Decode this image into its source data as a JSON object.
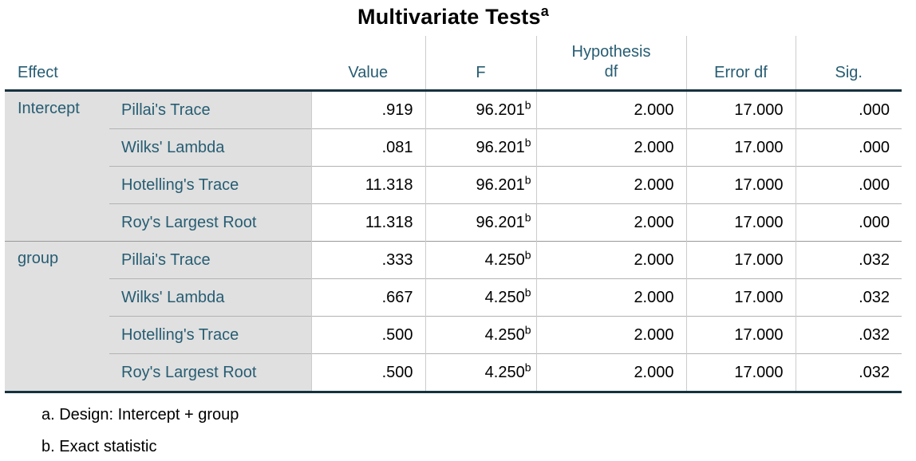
{
  "title": {
    "text": "Multivariate Tests",
    "superscript": "a"
  },
  "columns": {
    "effect": "Effect",
    "value": "Value",
    "f": "F",
    "hypothesis_df": "Hypothesis df",
    "error_df": "Error df",
    "sig": "Sig."
  },
  "effects": [
    {
      "name": "Intercept",
      "rows": [
        {
          "test": "Pillai's Trace",
          "value": ".919",
          "f": "96.201",
          "f_sup": "b",
          "hypothesis_df": "2.000",
          "error_df": "17.000",
          "sig": ".000"
        },
        {
          "test": "Wilks' Lambda",
          "value": ".081",
          "f": "96.201",
          "f_sup": "b",
          "hypothesis_df": "2.000",
          "error_df": "17.000",
          "sig": ".000"
        },
        {
          "test": "Hotelling's Trace",
          "value": "11.318",
          "f": "96.201",
          "f_sup": "b",
          "hypothesis_df": "2.000",
          "error_df": "17.000",
          "sig": ".000"
        },
        {
          "test": "Roy's Largest Root",
          "value": "11.318",
          "f": "96.201",
          "f_sup": "b",
          "hypothesis_df": "2.000",
          "error_df": "17.000",
          "sig": ".000"
        }
      ]
    },
    {
      "name": "group",
      "rows": [
        {
          "test": "Pillai's Trace",
          "value": ".333",
          "f": "4.250",
          "f_sup": "b",
          "hypothesis_df": "2.000",
          "error_df": "17.000",
          "sig": ".032"
        },
        {
          "test": "Wilks' Lambda",
          "value": ".667",
          "f": "4.250",
          "f_sup": "b",
          "hypothesis_df": "2.000",
          "error_df": "17.000",
          "sig": ".032"
        },
        {
          "test": "Hotelling's Trace",
          "value": ".500",
          "f": "4.250",
          "f_sup": "b",
          "hypothesis_df": "2.000",
          "error_df": "17.000",
          "sig": ".032"
        },
        {
          "test": "Roy's Largest Root",
          "value": ".500",
          "f": "4.250",
          "f_sup": "b",
          "hypothesis_df": "2.000",
          "error_df": "17.000",
          "sig": ".032"
        }
      ]
    }
  ],
  "footnotes": [
    "a. Design: Intercept + group",
    "b. Exact statistic"
  ],
  "colors": {
    "header_text": "#275D73",
    "label_background": "#e0e0e0",
    "thick_rule": "#16323F",
    "row_divider": "#b3b3b3",
    "section_divider": "#999999",
    "column_separator": "#cccccc"
  }
}
